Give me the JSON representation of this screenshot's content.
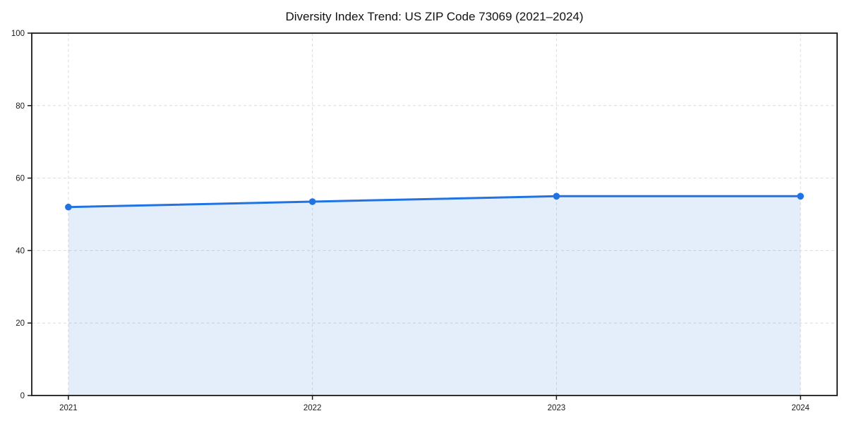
{
  "chart_data": {
    "type": "area",
    "title": "Diversity Index Trend: US ZIP Code 73069 (2021–2024)",
    "categories": [
      "2021",
      "2022",
      "2023",
      "2024"
    ],
    "series": [
      {
        "name": "Diversity Index",
        "values": [
          52,
          53.5,
          55,
          55
        ]
      }
    ],
    "xlabel": "",
    "ylabel": "",
    "ylim": [
      0,
      100
    ],
    "yticks": [
      0,
      20,
      40,
      60,
      80,
      100
    ],
    "grid": true,
    "grid_style": "dashed",
    "legend": "none",
    "colors": {
      "line": "#2173e2",
      "marker": "#2173e2",
      "fill": "rgba(33, 115, 226, 0.12)",
      "grid": "#dcdcdc",
      "axis": "#1a1a1a",
      "text": "#1a1a1a",
      "background": "#ffffff"
    }
  }
}
